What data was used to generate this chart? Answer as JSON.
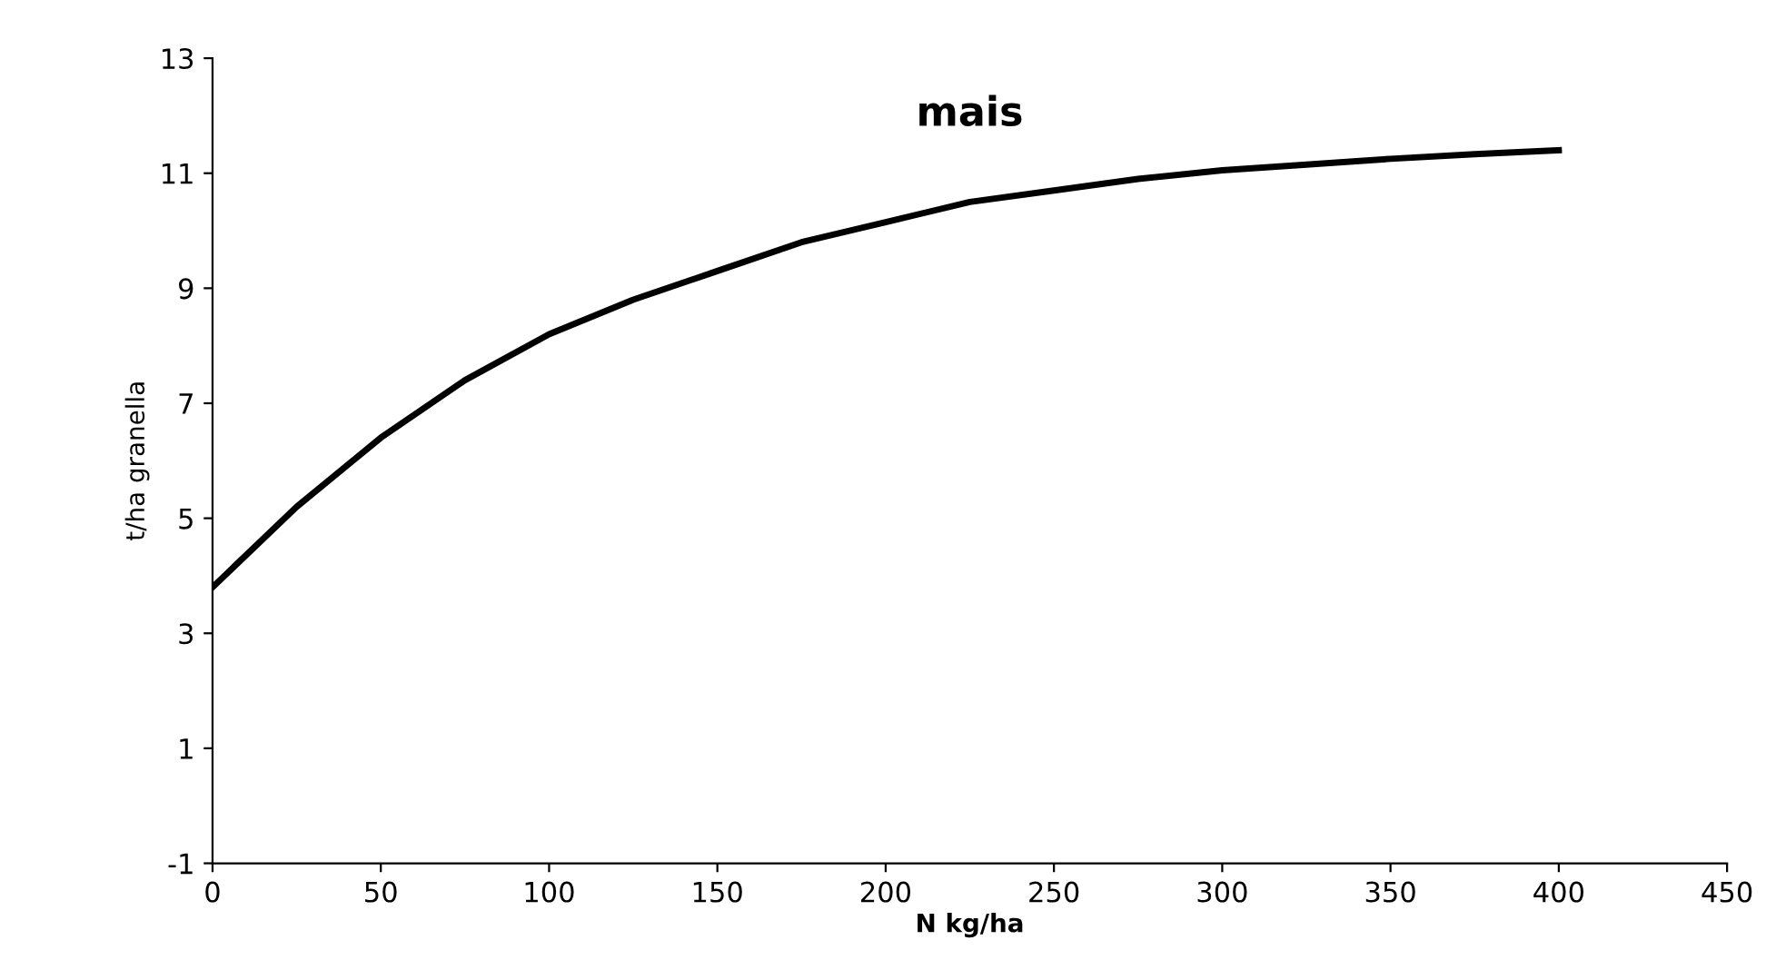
{
  "chart_data": {
    "type": "line",
    "title": "mais",
    "xlabel": "N kg/ha",
    "ylabel": "t/ha granella",
    "x": [
      0,
      25,
      50,
      75,
      100,
      125,
      150,
      175,
      200,
      225,
      250,
      275,
      300,
      325,
      350,
      375,
      400
    ],
    "series": [
      {
        "color": "#000000",
        "values": [
          3.8,
          5.2,
          6.4,
          7.4,
          8.2,
          8.8,
          9.3,
          9.8,
          10.15,
          10.5,
          10.7,
          10.9,
          11.05,
          11.15,
          11.25,
          11.33,
          11.4
        ]
      }
    ],
    "xlim": [
      0,
      450
    ],
    "xticks": [
      0,
      50,
      100,
      150,
      200,
      250,
      300,
      350,
      400,
      450
    ],
    "ylim": [
      -1,
      13
    ],
    "yticks": [
      -1,
      1,
      3,
      5,
      7,
      9,
      11,
      13
    ],
    "grid": false,
    "legend": false,
    "marker": "none",
    "line_style": "solid"
  }
}
